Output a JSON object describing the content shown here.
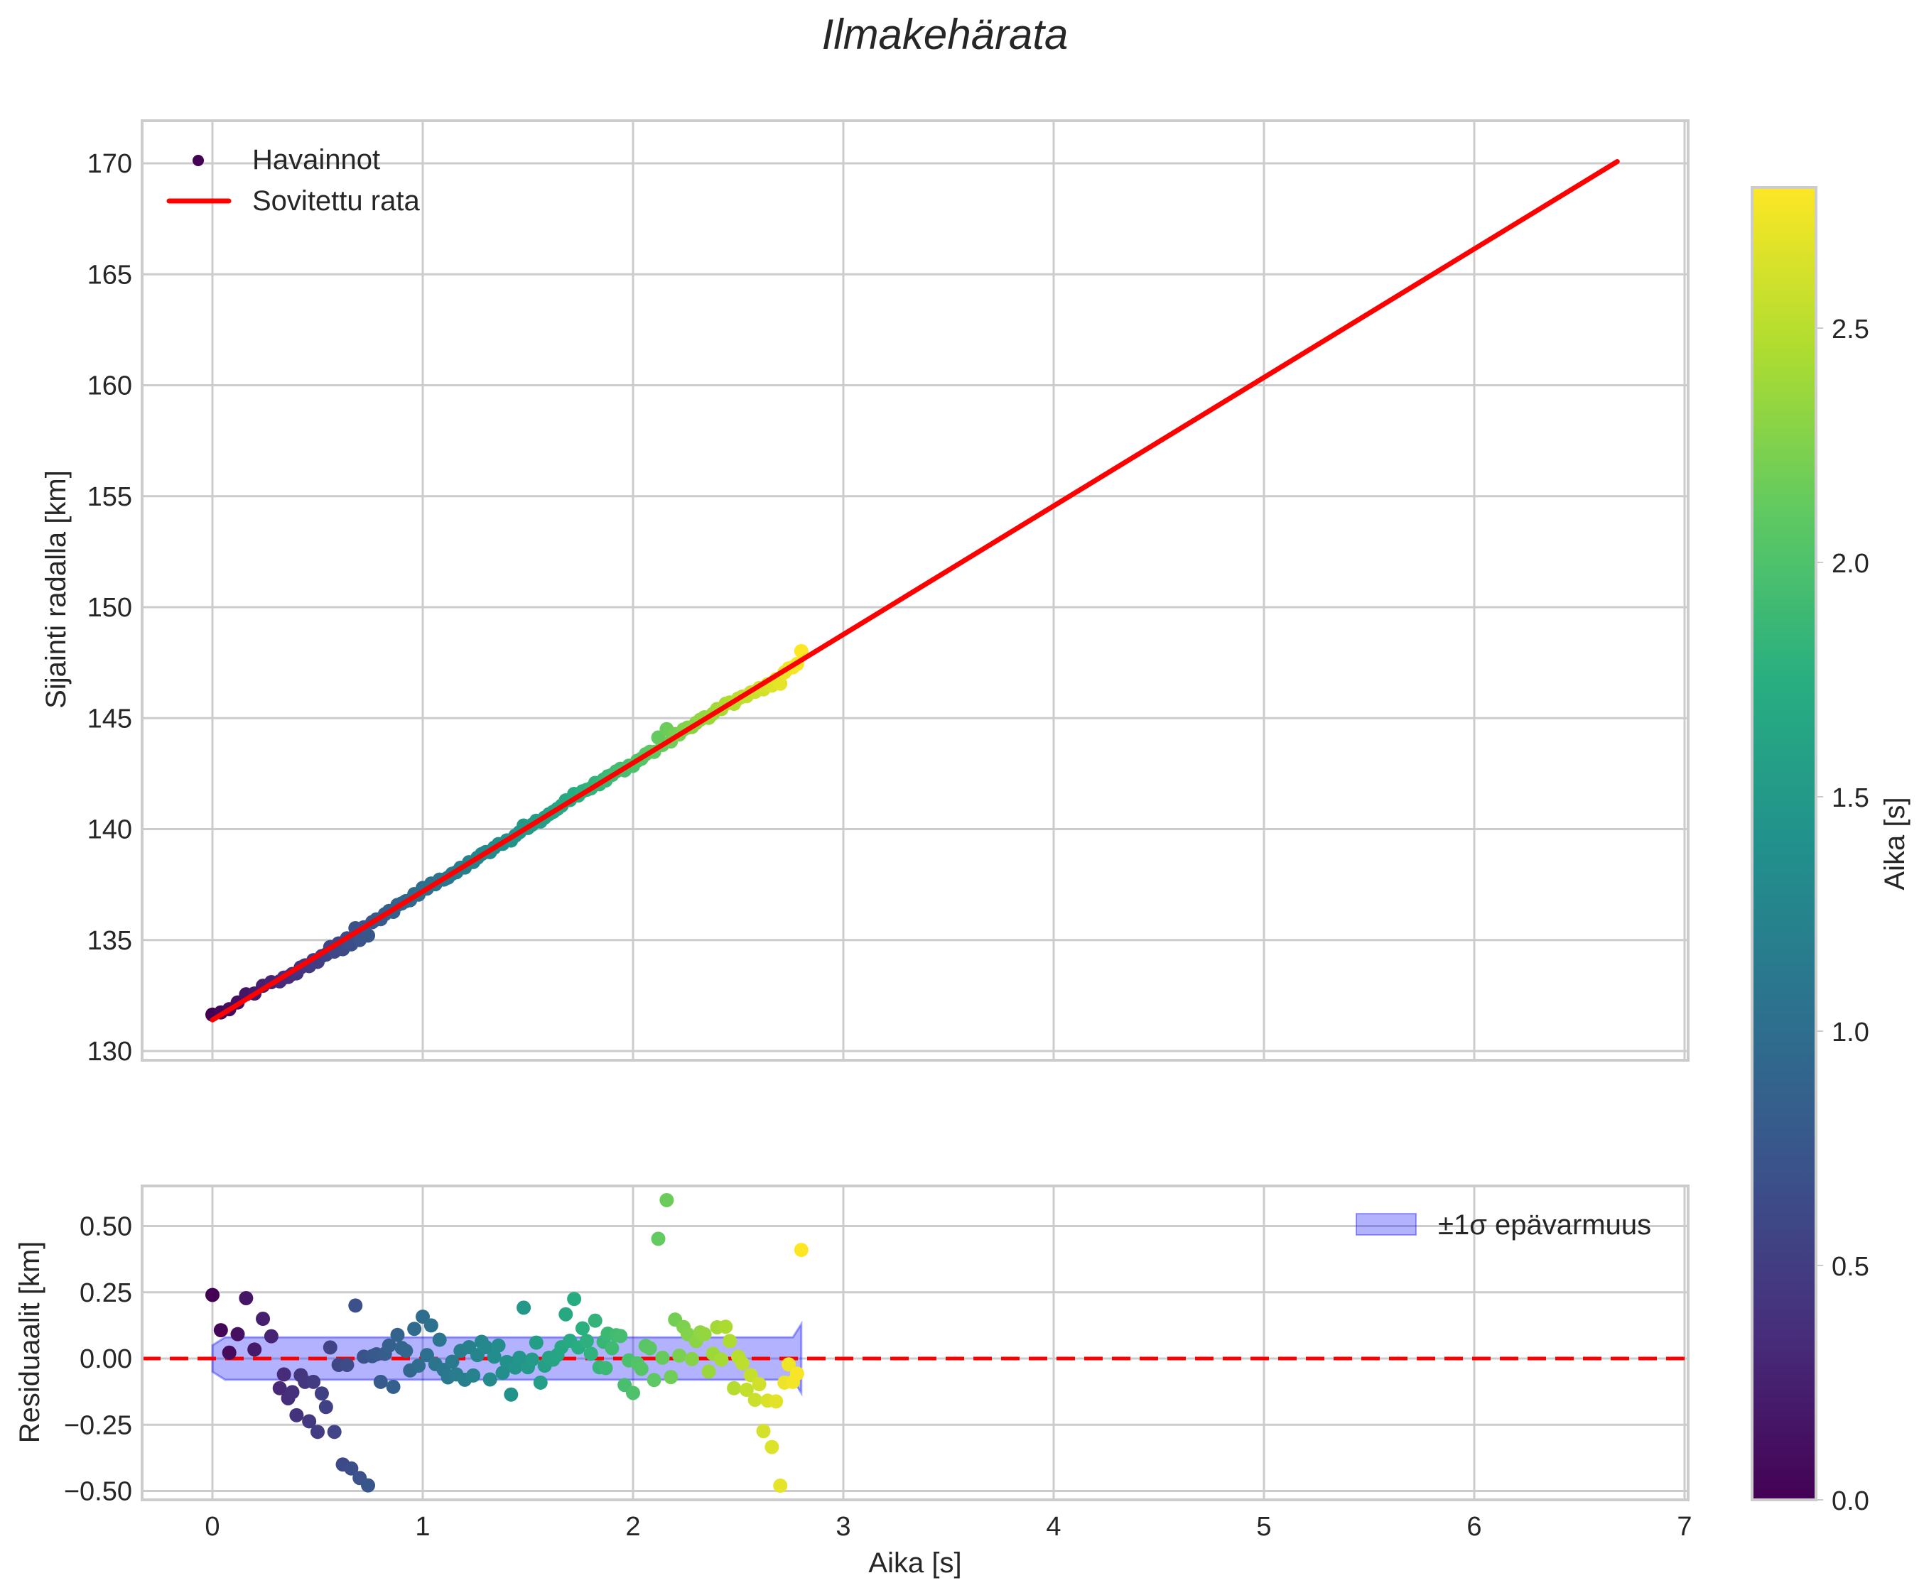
{
  "title": "Ilmakehärata",
  "chart_data": [
    {
      "panel": "top",
      "type": "scatter",
      "title": "Ilmakehärata",
      "xlabel": "Aika [s]",
      "ylabel": "Sijainti radalla [km]",
      "xlim": [
        -0.34,
        7.0
      ],
      "ylim": [
        129.6,
        171.9
      ],
      "xticks": [
        0,
        1,
        2,
        3,
        4,
        5,
        6,
        7
      ],
      "yticks": [
        130,
        135,
        140,
        145,
        150,
        155,
        160,
        165,
        170
      ],
      "grid": true,
      "legend": {
        "position": "upper left",
        "entries": [
          "Havainnot",
          "Sovitettu rata"
        ]
      },
      "series": [
        {
          "name": "Havainnot",
          "kind": "scatter",
          "colormap": "viridis",
          "color_by": "Aika [s]",
          "note": "position = fit_intercept + fit_slope*t + residual"
        },
        {
          "name": "Sovitettu rata",
          "kind": "line",
          "color": "#ff0000",
          "x": [
            0.0,
            6.68
          ],
          "y": [
            131.4,
            170.08
          ]
        }
      ],
      "fit": {
        "intercept": 131.4,
        "slope": 5.79,
        "t_end": 6.68
      }
    },
    {
      "panel": "bottom",
      "type": "scatter",
      "xlabel": "Aika [s]",
      "ylabel": "Residuaalit [km]",
      "xlim": [
        -0.34,
        7.0
      ],
      "ylim": [
        -0.52,
        0.65
      ],
      "xticks": [
        0,
        1,
        2,
        3,
        4,
        5,
        6,
        7
      ],
      "yticks": [
        -0.5,
        -0.25,
        0.0,
        0.25,
        0.5
      ],
      "grid": true,
      "legend": {
        "position": "upper right",
        "entries": [
          "±1σ epävarmuus"
        ]
      },
      "zero_line": {
        "y": 0,
        "style": "dashed",
        "color": "#ff0000"
      },
      "uncertainty_band": {
        "color": "#0000ff",
        "alpha": 0.3,
        "t": [
          0.0,
          0.06,
          2.76,
          2.8
        ],
        "upper": [
          0.05,
          0.08,
          0.08,
          0.13
        ],
        "lower": [
          -0.05,
          -0.08,
          -0.08,
          -0.13
        ]
      }
    }
  ],
  "observations": [
    [
      0.0,
      0.24
    ],
    [
      0.04,
      0.107
    ],
    [
      0.08,
      0.022
    ],
    [
      0.12,
      0.092
    ],
    [
      0.16,
      0.228
    ],
    [
      0.2,
      0.034
    ],
    [
      0.24,
      0.15
    ],
    [
      0.28,
      0.084
    ],
    [
      0.32,
      -0.112
    ],
    [
      0.34,
      -0.06
    ],
    [
      0.36,
      -0.15
    ],
    [
      0.38,
      -0.127
    ],
    [
      0.4,
      -0.214
    ],
    [
      0.42,
      -0.063
    ],
    [
      0.44,
      -0.088
    ],
    [
      0.46,
      -0.237
    ],
    [
      0.48,
      -0.088
    ],
    [
      0.5,
      -0.277
    ],
    [
      0.52,
      -0.132
    ],
    [
      0.54,
      -0.183
    ],
    [
      0.56,
      0.042
    ],
    [
      0.58,
      -0.277
    ],
    [
      0.6,
      -0.024
    ],
    [
      0.62,
      -0.4
    ],
    [
      0.64,
      -0.024
    ],
    [
      0.66,
      -0.415
    ],
    [
      0.68,
      0.2
    ],
    [
      0.7,
      -0.451
    ],
    [
      0.72,
      0.007
    ],
    [
      0.74,
      -0.479
    ],
    [
      0.76,
      0.009
    ],
    [
      0.78,
      0.016
    ],
    [
      0.8,
      -0.088
    ],
    [
      0.82,
      0.018
    ],
    [
      0.84,
      0.049
    ],
    [
      0.86,
      -0.107
    ],
    [
      0.88,
      0.089
    ],
    [
      0.9,
      0.04
    ],
    [
      0.92,
      0.029
    ],
    [
      0.94,
      -0.045
    ],
    [
      0.96,
      0.112
    ],
    [
      0.98,
      -0.027
    ],
    [
      1.0,
      0.158
    ],
    [
      1.02,
      0.013
    ],
    [
      1.04,
      0.125
    ],
    [
      1.06,
      -0.021
    ],
    [
      1.08,
      0.071
    ],
    [
      1.1,
      -0.043
    ],
    [
      1.12,
      -0.071
    ],
    [
      1.14,
      -0.012
    ],
    [
      1.16,
      -0.06
    ],
    [
      1.18,
      0.029
    ],
    [
      1.2,
      -0.08
    ],
    [
      1.22,
      0.043
    ],
    [
      1.24,
      -0.064
    ],
    [
      1.26,
      0.013
    ],
    [
      1.28,
      0.063
    ],
    [
      1.3,
      0.043
    ],
    [
      1.32,
      -0.079
    ],
    [
      1.34,
      0.007
    ],
    [
      1.36,
      0.049
    ],
    [
      1.38,
      -0.054
    ],
    [
      1.4,
      -0.013
    ],
    [
      1.42,
      -0.136
    ],
    [
      1.44,
      -0.034
    ],
    [
      1.46,
      0.003
    ],
    [
      1.48,
      0.192
    ],
    [
      1.5,
      -0.033
    ],
    [
      1.52,
      -0.004
    ],
    [
      1.54,
      0.06
    ],
    [
      1.56,
      -0.091
    ],
    [
      1.58,
      -0.027
    ],
    [
      1.6,
      0.003
    ],
    [
      1.62,
      -0.004
    ],
    [
      1.64,
      0.013
    ],
    [
      1.66,
      0.043
    ],
    [
      1.68,
      0.167
    ],
    [
      1.7,
      0.067
    ],
    [
      1.72,
      0.225
    ],
    [
      1.74,
      0.042
    ],
    [
      1.76,
      0.114
    ],
    [
      1.78,
      0.066
    ],
    [
      1.8,
      0.018
    ],
    [
      1.82,
      0.143
    ],
    [
      1.84,
      -0.033
    ],
    [
      1.86,
      0.063
    ],
    [
      1.87,
      -0.036
    ],
    [
      1.88,
      0.094
    ],
    [
      1.9,
      0.039
    ],
    [
      1.92,
      0.088
    ],
    [
      1.94,
      0.085
    ],
    [
      1.96,
      -0.1
    ],
    [
      1.98,
      -0.007
    ],
    [
      2.0,
      -0.13
    ],
    [
      2.02,
      -0.018
    ],
    [
      2.04,
      -0.039
    ],
    [
      2.06,
      0.048
    ],
    [
      2.08,
      0.039
    ],
    [
      2.1,
      -0.081
    ],
    [
      2.12,
      0.452
    ],
    [
      2.14,
      0.003
    ],
    [
      2.16,
      0.598
    ],
    [
      2.18,
      -0.07
    ],
    [
      2.2,
      0.147
    ],
    [
      2.22,
      0.011
    ],
    [
      2.24,
      0.119
    ],
    [
      2.26,
      0.092
    ],
    [
      2.28,
      -0.002
    ],
    [
      2.3,
      0.066
    ],
    [
      2.32,
      0.099
    ],
    [
      2.34,
      0.092
    ],
    [
      2.36,
      -0.049
    ],
    [
      2.38,
      0.018
    ],
    [
      2.4,
      0.118
    ],
    [
      2.42,
      -0.004
    ],
    [
      2.44,
      0.12
    ],
    [
      2.46,
      0.066
    ],
    [
      2.48,
      -0.112
    ],
    [
      2.5,
      0.007
    ],
    [
      2.52,
      -0.018
    ],
    [
      2.54,
      -0.118
    ],
    [
      2.56,
      -0.063
    ],
    [
      2.58,
      -0.156
    ],
    [
      2.6,
      -0.097
    ],
    [
      2.62,
      -0.274
    ],
    [
      2.64,
      -0.159
    ],
    [
      2.66,
      -0.334
    ],
    [
      2.68,
      -0.162
    ],
    [
      2.7,
      -0.48
    ],
    [
      2.72,
      -0.091
    ],
    [
      2.74,
      -0.022
    ],
    [
      2.76,
      -0.088
    ],
    [
      2.78,
      -0.057
    ],
    [
      2.8,
      0.41
    ]
  ],
  "colorbar": {
    "label": "Aika [s]",
    "colormap": "viridis",
    "range": [
      0.0,
      2.8
    ],
    "ticks": [
      "0.0",
      "0.5",
      "1.0",
      "1.5",
      "2.0",
      "2.5"
    ]
  },
  "colors": {
    "grid": "#cccccc",
    "fit_line": "#ff0000",
    "zero_line": "#ff0000",
    "band_fill": "#0000ff",
    "text": "#262626"
  }
}
